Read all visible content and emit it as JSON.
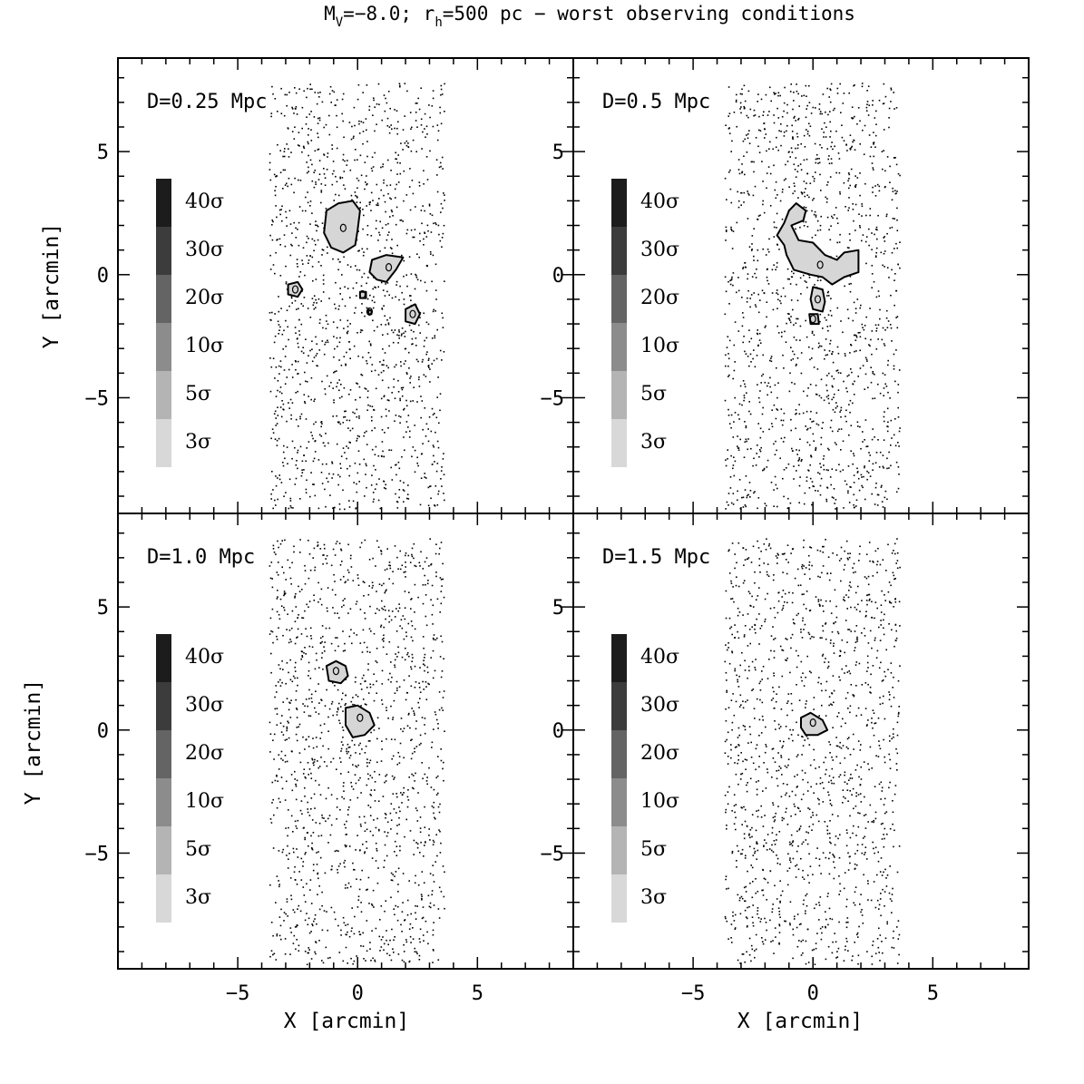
{
  "figure": {
    "title_main": "M",
    "title_sub_v": "V",
    "title_mid": "=−8.0; r",
    "title_sub_h": "h",
    "title_end": "=500 pc − worst observing conditions"
  },
  "chart_data": {
    "type": "scatter",
    "xlabel": "X [arcmin]",
    "ylabel": "Y [arcmin]",
    "xlim": [
      -10,
      9
    ],
    "ylim": [
      -9.7,
      8.8
    ],
    "xticks": [
      -5,
      0,
      5
    ],
    "yticks": [
      -5,
      0,
      5
    ],
    "grid": false,
    "colorbar": {
      "levels": [
        "40σ",
        "30σ",
        "20σ",
        "10σ",
        "5σ",
        "3σ"
      ],
      "colors": [
        "#1c1c1c",
        "#3c3c3c",
        "#646464",
        "#8c8c8c",
        "#b4b4b4",
        "#d8d8d8"
      ]
    },
    "field": {
      "x_range": [
        -3.7,
        3.6
      ],
      "y_range": [
        -9.5,
        7.8
      ],
      "star_count": 1400
    },
    "panels": [
      {
        "label": "D=0.25 Mpc",
        "detections": [
          {
            "name": "main",
            "x": -0.6,
            "y": 1.9,
            "contour": [
              [
                -1.3,
                2.6
              ],
              [
                -0.8,
                2.9
              ],
              [
                -0.2,
                3.0
              ],
              [
                0.1,
                2.6
              ],
              [
                0.0,
                1.8
              ],
              [
                -0.1,
                1.2
              ],
              [
                -0.6,
                0.9
              ],
              [
                -1.1,
                1.1
              ],
              [
                -1.4,
                1.7
              ]
            ]
          },
          {
            "name": "east",
            "x": 1.3,
            "y": 0.3,
            "contour": [
              [
                0.6,
                0.6
              ],
              [
                1.2,
                0.8
              ],
              [
                1.9,
                0.7
              ],
              [
                1.6,
                0.2
              ],
              [
                1.2,
                -0.3
              ],
              [
                0.8,
                -0.2
              ],
              [
                0.5,
                0.1
              ]
            ]
          },
          {
            "name": "west",
            "x": -2.6,
            "y": -0.6,
            "contour": [
              [
                -2.9,
                -0.4
              ],
              [
                -2.5,
                -0.3
              ],
              [
                -2.3,
                -0.6
              ],
              [
                -2.5,
                -0.9
              ],
              [
                -2.9,
                -0.8
              ]
            ]
          },
          {
            "name": "south-east",
            "x": 2.3,
            "y": -1.6,
            "contour": [
              [
                2.0,
                -1.4
              ],
              [
                2.4,
                -1.2
              ],
              [
                2.6,
                -1.6
              ],
              [
                2.4,
                -2.0
              ],
              [
                2.0,
                -1.9
              ]
            ]
          },
          {
            "name": "blob-a",
            "x": 0.2,
            "y": -0.8,
            "contour": [
              [
                0.1,
                -0.7
              ],
              [
                0.35,
                -0.7
              ],
              [
                0.35,
                -0.95
              ],
              [
                0.1,
                -0.95
              ]
            ]
          },
          {
            "name": "blob-b",
            "x": 0.5,
            "y": -1.5,
            "contour": [
              [
                0.45,
                -1.45
              ],
              [
                0.58,
                -1.45
              ],
              [
                0.58,
                -1.6
              ],
              [
                0.45,
                -1.6
              ]
            ]
          }
        ]
      },
      {
        "label": "D=0.5 Mpc",
        "detections": [
          {
            "name": "main",
            "x": 0.3,
            "y": 0.4,
            "contour": [
              [
                -1.5,
                1.6
              ],
              [
                -1.2,
                2.1
              ],
              [
                -1.0,
                2.6
              ],
              [
                -0.7,
                2.9
              ],
              [
                -0.3,
                2.6
              ],
              [
                -0.4,
                2.2
              ],
              [
                -0.9,
                2.0
              ],
              [
                -0.6,
                1.4
              ],
              [
                0.0,
                1.3
              ],
              [
                0.5,
                0.8
              ],
              [
                1.0,
                0.6
              ],
              [
                1.3,
                0.9
              ],
              [
                1.9,
                1.0
              ],
              [
                1.9,
                0.1
              ],
              [
                1.3,
                -0.1
              ],
              [
                0.8,
                -0.4
              ],
              [
                0.4,
                -0.1
              ],
              [
                -0.1,
                0.0
              ],
              [
                -0.8,
                0.2
              ],
              [
                -1.1,
                0.8
              ],
              [
                -1.2,
                1.2
              ]
            ]
          },
          {
            "name": "tail",
            "x": 0.2,
            "y": -1.0,
            "contour": [
              [
                0.0,
                -0.5
              ],
              [
                0.4,
                -0.6
              ],
              [
                0.5,
                -1.1
              ],
              [
                0.4,
                -1.5
              ],
              [
                0.0,
                -1.4
              ],
              [
                -0.1,
                -1.0
              ]
            ]
          },
          {
            "name": "tail-end",
            "x": 0.0,
            "y": -1.8,
            "contour": [
              [
                -0.15,
                -1.6
              ],
              [
                0.2,
                -1.6
              ],
              [
                0.25,
                -2.0
              ],
              [
                -0.1,
                -2.0
              ]
            ]
          }
        ]
      },
      {
        "label": "D=1.0 Mpc",
        "detections": [
          {
            "name": "north",
            "x": -0.9,
            "y": 2.4,
            "contour": [
              [
                -1.3,
                2.6
              ],
              [
                -0.9,
                2.8
              ],
              [
                -0.5,
                2.6
              ],
              [
                -0.4,
                2.2
              ],
              [
                -0.7,
                1.9
              ],
              [
                -1.2,
                2.0
              ]
            ]
          },
          {
            "name": "center",
            "x": 0.1,
            "y": 0.5,
            "contour": [
              [
                -0.5,
                0.9
              ],
              [
                0.0,
                1.0
              ],
              [
                0.5,
                0.7
              ],
              [
                0.7,
                0.2
              ],
              [
                0.3,
                -0.2
              ],
              [
                -0.2,
                -0.3
              ],
              [
                -0.5,
                0.2
              ]
            ]
          }
        ]
      },
      {
        "label": "D=1.5 Mpc",
        "detections": [
          {
            "name": "center",
            "x": 0.0,
            "y": 0.3,
            "contour": [
              [
                -0.5,
                0.5
              ],
              [
                -0.1,
                0.7
              ],
              [
                0.4,
                0.4
              ],
              [
                0.6,
                0.0
              ],
              [
                0.2,
                -0.2
              ],
              [
                -0.3,
                -0.2
              ],
              [
                -0.5,
                0.1
              ]
            ]
          }
        ]
      }
    ]
  }
}
